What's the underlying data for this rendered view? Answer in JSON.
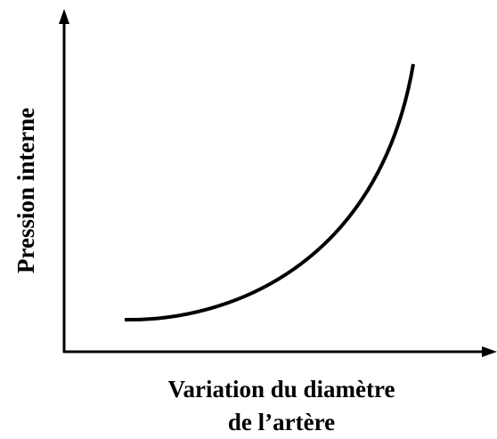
{
  "y_axis_label": "Pression interne",
  "x_axis_label": [
    "Variation du diamètre",
    "de l’artère"
  ]
}
